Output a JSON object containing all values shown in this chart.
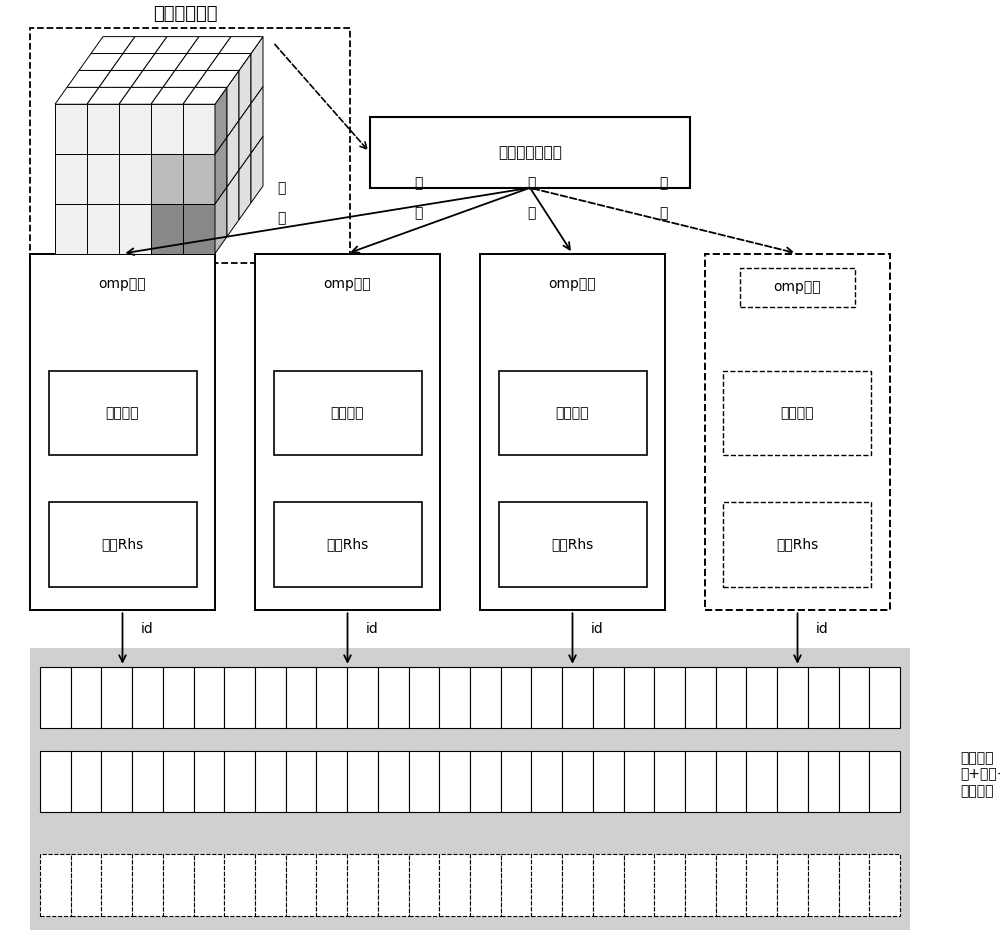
{
  "bg_color": "#ffffff",
  "grid_bg": "#d0d0d0",
  "text_color": "#000000",
  "cube_label": "插值规模划分",
  "center_box_label": "插值点坐标生成",
  "omp_label": "omp线程",
  "neighbor_label": "近邻搜索",
  "construct_label": "构造Rhs",
  "id_label": "id",
  "bottom_label": "近邻点坐\n标+维度+\n属性数据",
  "iter_label1": "迭",
  "iter_label2": "代",
  "font_size_title": 13,
  "font_size_box": 11,
  "font_size_inner": 10,
  "font_size_iter": 10,
  "font_size_id": 10,
  "font_size_bottom": 10
}
